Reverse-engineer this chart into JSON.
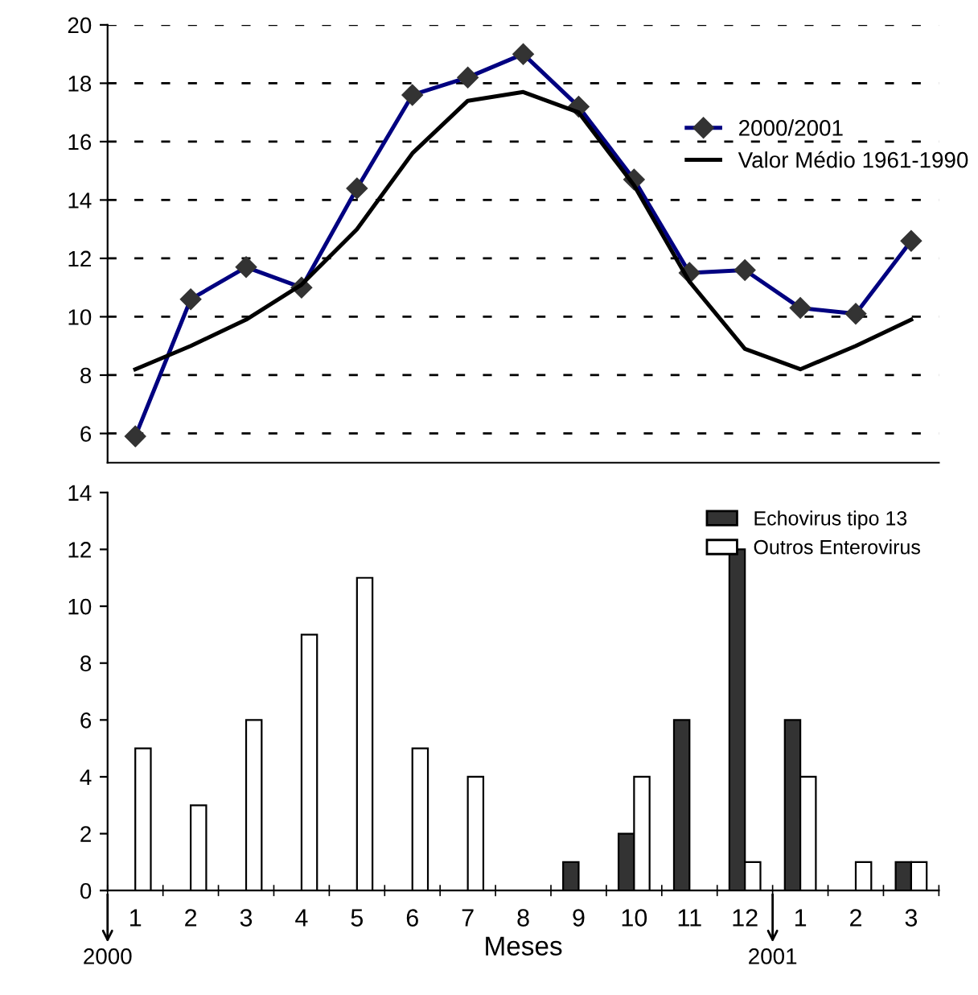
{
  "chart_data": [
    {
      "type": "line",
      "categories": [
        null,
        null,
        null,
        null,
        null,
        null,
        null,
        null,
        null,
        null,
        null,
        null,
        null,
        null,
        null
      ],
      "series": [
        {
          "name": "2000/2001",
          "color": "#000080",
          "marker": "diamond",
          "values": [
            5.9,
            10.6,
            11.7,
            11.0,
            14.4,
            17.6,
            18.2,
            19.0,
            17.2,
            14.7,
            11.5,
            11.6,
            10.3,
            10.1,
            12.6
          ]
        },
        {
          "name": "Valor Médio 1961-1990",
          "color": "#000000",
          "marker": "none",
          "values": [
            8.2,
            9.0,
            9.9,
            11.1,
            13.0,
            15.6,
            17.4,
            17.7,
            17.0,
            14.5,
            11.2,
            8.9,
            8.2,
            9.0,
            9.9
          ]
        }
      ],
      "ylim": [
        5,
        20
      ],
      "yticks": [
        6,
        8,
        10,
        12,
        14,
        16,
        18,
        20
      ],
      "grid": "y",
      "legend": "top right"
    },
    {
      "type": "bar",
      "categories": [
        "1",
        "2",
        "3",
        "4",
        "5",
        "6",
        "7",
        "8",
        "9",
        "10",
        "11",
        "12",
        "1",
        "2",
        "3"
      ],
      "series": [
        {
          "name": "Echovirus tipo 13",
          "color": "#333333",
          "values": [
            0,
            0,
            0,
            0,
            0,
            0,
            0,
            0,
            1,
            2,
            6,
            12,
            6,
            0,
            1
          ]
        },
        {
          "name": "Outros Enterovirus",
          "color": "#ffffff",
          "values": [
            5,
            3,
            6,
            9,
            11,
            5,
            4,
            0,
            0,
            4,
            0,
            1,
            4,
            1,
            1
          ]
        }
      ],
      "ylim": [
        0,
        14
      ],
      "yticks": [
        0,
        2,
        4,
        6,
        8,
        10,
        12,
        14
      ],
      "xlabel": "Meses",
      "legend": "top right",
      "annotations": [
        "2000",
        "2001"
      ]
    }
  ]
}
